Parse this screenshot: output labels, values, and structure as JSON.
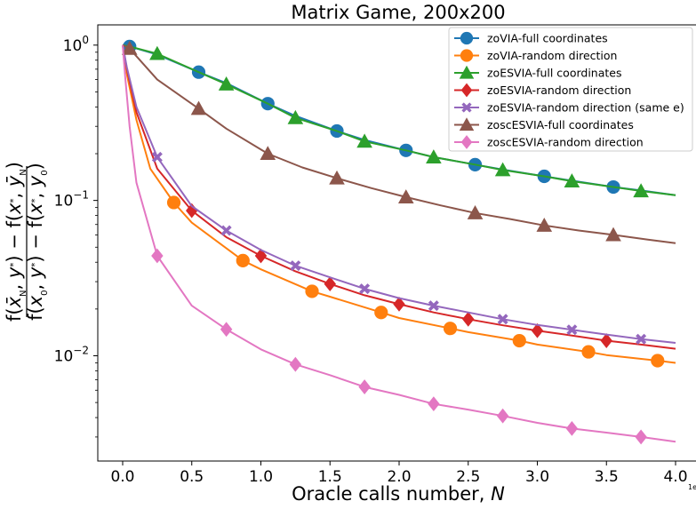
{
  "chart_data": {
    "type": "line",
    "title": "Matrix Game, 200x200",
    "xlabel": "Oracle calls number, N",
    "ylabel": "(f(x̄_N, y*) − f(x*, ȳ_N)) / (f(x_0, y*) − f(x*, y_0))",
    "x_scale_note": "1e6",
    "xlim": [
      -0.18,
      4.0
    ],
    "ylim": [
      0.0021,
      1.35
    ],
    "y_scale": "log",
    "x_ticks": [
      "0.0",
      "0.5",
      "1.0",
      "1.5",
      "2.0",
      "2.5",
      "3.0",
      "3.5",
      "4.0"
    ],
    "x_tick_values": [
      0,
      0.5,
      1.0,
      1.5,
      2.0,
      2.5,
      3.0,
      3.5,
      4.0
    ],
    "y_ticks": [
      "10^0",
      "10^-1",
      "10^-2"
    ],
    "grid": false,
    "legend_position": "top-right",
    "series": [
      {
        "name": "zoVIA-full coordinates",
        "color": "#1f77b4",
        "marker": "circle",
        "x": [
          0.0,
          0.05,
          0.25,
          0.55,
          0.75,
          1.05,
          1.25,
          1.55,
          1.75,
          2.05,
          2.25,
          2.55,
          2.75,
          3.05,
          3.25,
          3.55,
          3.75,
          4.0
        ],
        "y": [
          1.0,
          0.98,
          0.87,
          0.67,
          0.57,
          0.42,
          0.35,
          0.28,
          0.245,
          0.21,
          0.19,
          0.17,
          0.158,
          0.143,
          0.134,
          0.122,
          0.116,
          0.108
        ],
        "marker_x": [
          0.05,
          0.55,
          1.05,
          1.55,
          2.05,
          2.55,
          3.05,
          3.55
        ]
      },
      {
        "name": "zoVIA-random direction",
        "color": "#ff7f0e",
        "marker": "circle",
        "x": [
          0.0,
          0.03,
          0.1,
          0.2,
          0.37,
          0.5,
          0.87,
          1.0,
          1.37,
          1.5,
          1.87,
          2.0,
          2.37,
          2.5,
          2.87,
          3.0,
          3.37,
          3.5,
          3.87,
          4.0
        ],
        "y": [
          1.0,
          0.65,
          0.33,
          0.16,
          0.097,
          0.072,
          0.041,
          0.036,
          0.026,
          0.024,
          0.019,
          0.0175,
          0.015,
          0.0142,
          0.0125,
          0.0118,
          0.0106,
          0.0101,
          0.0093,
          0.009
        ],
        "marker_x": [
          0.37,
          0.87,
          1.37,
          1.87,
          2.37,
          2.87,
          3.37,
          3.87
        ]
      },
      {
        "name": "zoESVIA-full coordinates",
        "color": "#2ca02c",
        "marker": "triangle",
        "x": [
          0.0,
          0.05,
          0.25,
          0.55,
          0.75,
          1.05,
          1.25,
          1.55,
          1.75,
          2.05,
          2.25,
          2.55,
          2.75,
          3.05,
          3.25,
          3.55,
          3.75,
          4.0
        ],
        "y": [
          1.0,
          0.98,
          0.88,
          0.67,
          0.56,
          0.42,
          0.34,
          0.28,
          0.24,
          0.21,
          0.19,
          0.17,
          0.157,
          0.143,
          0.133,
          0.122,
          0.115,
          0.108
        ],
        "marker_x": [
          0.25,
          0.75,
          1.25,
          1.75,
          2.25,
          2.75,
          3.25,
          3.75
        ]
      },
      {
        "name": "zoESVIA-random direction",
        "color": "#d62728",
        "marker": "diamond",
        "x": [
          0.0,
          0.03,
          0.1,
          0.25,
          0.5,
          0.75,
          1.0,
          1.25,
          1.5,
          1.75,
          2.0,
          2.25,
          2.5,
          2.75,
          3.0,
          3.25,
          3.5,
          3.75,
          4.0
        ],
        "y": [
          1.0,
          0.7,
          0.37,
          0.16,
          0.086,
          0.058,
          0.044,
          0.035,
          0.029,
          0.0245,
          0.0215,
          0.019,
          0.0172,
          0.0157,
          0.0145,
          0.0135,
          0.0125,
          0.0118,
          0.0111
        ],
        "marker_x": [
          0.5,
          1.0,
          1.5,
          2.0,
          2.5,
          3.0,
          3.5
        ]
      },
      {
        "name": "zoESVIA-random direction (same e)",
        "color": "#9467bd",
        "marker": "x",
        "x": [
          0.0,
          0.03,
          0.1,
          0.25,
          0.5,
          0.75,
          1.0,
          1.25,
          1.5,
          1.75,
          2.0,
          2.25,
          2.5,
          2.75,
          3.0,
          3.25,
          3.5,
          3.75,
          4.0
        ],
        "y": [
          1.0,
          0.72,
          0.4,
          0.19,
          0.092,
          0.064,
          0.048,
          0.038,
          0.032,
          0.027,
          0.0235,
          0.021,
          0.019,
          0.0172,
          0.0158,
          0.0147,
          0.0137,
          0.0128,
          0.0121
        ],
        "marker_x": [
          0.25,
          0.75,
          1.25,
          1.75,
          2.25,
          2.75,
          3.25,
          3.75
        ]
      },
      {
        "name": "zoscESVIA-full coordinates",
        "color": "#8c564b",
        "marker": "triangle",
        "x": [
          0.0,
          0.05,
          0.25,
          0.55,
          0.75,
          1.05,
          1.3,
          1.55,
          1.8,
          2.05,
          2.3,
          2.55,
          2.8,
          3.05,
          3.3,
          3.55,
          3.8,
          4.0
        ],
        "y": [
          1.0,
          0.95,
          0.6,
          0.39,
          0.29,
          0.2,
          0.163,
          0.139,
          0.12,
          0.105,
          0.093,
          0.083,
          0.076,
          0.069,
          0.064,
          0.06,
          0.056,
          0.053
        ],
        "marker_x": [
          0.05,
          0.55,
          1.05,
          1.55,
          2.05,
          2.55,
          3.05,
          3.55
        ]
      },
      {
        "name": "zoscESVIA-random direction",
        "color": "#e377c2",
        "marker": "diamond",
        "x": [
          0.0,
          0.02,
          0.05,
          0.1,
          0.25,
          0.5,
          0.75,
          1.0,
          1.25,
          1.5,
          1.75,
          2.0,
          2.25,
          2.5,
          2.75,
          3.0,
          3.25,
          3.5,
          3.75,
          4.0
        ],
        "y": [
          1.0,
          0.6,
          0.3,
          0.13,
          0.044,
          0.021,
          0.0148,
          0.011,
          0.0088,
          0.0075,
          0.0063,
          0.0056,
          0.0049,
          0.0045,
          0.0041,
          0.0037,
          0.0034,
          0.0032,
          0.003,
          0.0028
        ],
        "marker_x": [
          0.25,
          0.75,
          1.25,
          1.75,
          2.25,
          2.75,
          3.25,
          3.75
        ]
      }
    ]
  }
}
